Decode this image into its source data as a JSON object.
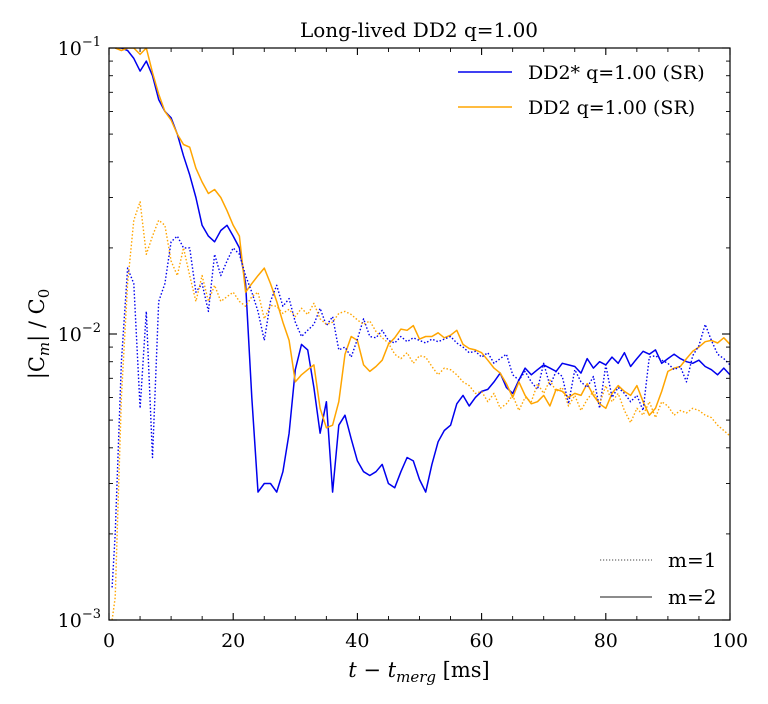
{
  "chart_data": {
    "type": "line",
    "title": "Long-lived DD2 q=1.00",
    "xlabel": "t − t",
    "xlabel_sub": "merg",
    "xlabel_unit": " [ms]",
    "ylabel_pre": "|C",
    "ylabel_sub1": "m",
    "ylabel_mid": "| / C",
    "ylabel_sub2": "0",
    "xlim": [
      0,
      100
    ],
    "ylim": [
      0.001,
      0.1
    ],
    "yscale": "log",
    "x_ticks": [
      0,
      20,
      40,
      60,
      80,
      100
    ],
    "x_tick_labels": [
      "0",
      "20",
      "40",
      "60",
      "80",
      "100"
    ],
    "y_ticks": [
      0.001,
      0.01,
      0.1
    ],
    "y_tick_labels": [
      {
        "base": "10",
        "exp": "−3"
      },
      {
        "base": "10",
        "exp": "−2"
      },
      {
        "base": "10",
        "exp": "−1"
      }
    ],
    "legend_placement": "top-right",
    "legend": [
      {
        "label": "DD2* q=1.00 (SR)",
        "color": "#0000ee"
      },
      {
        "label": "DD2 q=1.00 (SR)",
        "color": "#ffa500"
      }
    ],
    "style_legend": [
      {
        "label": "m=1",
        "style": "dotted"
      },
      {
        "label": "m=2",
        "style": "solid"
      }
    ],
    "series": [
      {
        "legend_label": "DD2* q=1.00 (SR)",
        "mode": "m=2",
        "style": "solid",
        "color": "#0000ee",
        "x": [
          1,
          2,
          3,
          4,
          5,
          6,
          7,
          8,
          9,
          10,
          11,
          12,
          13,
          14,
          15,
          16,
          17,
          18,
          19,
          20,
          21,
          22,
          23,
          24,
          25,
          26,
          27,
          28,
          29,
          30,
          31,
          32,
          33,
          34,
          35,
          36,
          37,
          38,
          39,
          40,
          41,
          42,
          43,
          44,
          45,
          46,
          47,
          48,
          49,
          50,
          51,
          52,
          53,
          54,
          55,
          56,
          57,
          58,
          59,
          60,
          61,
          62,
          63,
          64,
          65,
          66,
          67,
          68,
          69,
          70,
          71,
          72,
          73,
          74,
          75,
          76,
          77,
          78,
          79,
          80,
          81,
          82,
          83,
          84,
          85,
          86,
          87,
          88,
          89,
          90,
          91,
          92,
          93,
          94,
          95,
          96,
          97,
          98,
          99,
          100
        ],
        "y": [
          0.1,
          0.1,
          0.098,
          0.092,
          0.083,
          0.09,
          0.08,
          0.066,
          0.06,
          0.057,
          0.05,
          0.042,
          0.036,
          0.03,
          0.024,
          0.022,
          0.021,
          0.023,
          0.024,
          0.022,
          0.02,
          0.015,
          0.006,
          0.0028,
          0.003,
          0.003,
          0.0028,
          0.0033,
          0.0045,
          0.0075,
          0.0092,
          0.0088,
          0.0065,
          0.0045,
          0.0058,
          0.0028,
          0.0048,
          0.0052,
          0.0043,
          0.0036,
          0.0033,
          0.0032,
          0.0033,
          0.0035,
          0.003,
          0.0029,
          0.0033,
          0.0037,
          0.0036,
          0.0031,
          0.0028,
          0.0035,
          0.0042,
          0.0046,
          0.0048,
          0.0057,
          0.0061,
          0.0056,
          0.006,
          0.0063,
          0.0064,
          0.0068,
          0.0073,
          0.0065,
          0.0062,
          0.0069,
          0.0076,
          0.0072,
          0.0075,
          0.0078,
          0.0076,
          0.0074,
          0.0079,
          0.0078,
          0.0077,
          0.0073,
          0.0082,
          0.0076,
          0.008,
          0.0078,
          0.0083,
          0.0079,
          0.0086,
          0.0077,
          0.0082,
          0.0087,
          0.0085,
          0.0088,
          0.0079,
          0.0082,
          0.0085,
          0.0082,
          0.008,
          0.0079,
          0.0081,
          0.0077,
          0.0075,
          0.0072,
          0.0076,
          0.0072
        ]
      },
      {
        "legend_label": "DD2 q=1.00 (SR)",
        "mode": "m=2",
        "style": "solid",
        "color": "#ffa500",
        "x": [
          1,
          2,
          3,
          4,
          5,
          6,
          7,
          8,
          9,
          10,
          11,
          12,
          13,
          14,
          15,
          16,
          17,
          18,
          19,
          20,
          21,
          22,
          23,
          24,
          25,
          26,
          27,
          28,
          29,
          30,
          31,
          32,
          33,
          34,
          35,
          36,
          37,
          38,
          39,
          40,
          41,
          42,
          43,
          44,
          45,
          46,
          47,
          48,
          49,
          50,
          51,
          52,
          53,
          54,
          55,
          56,
          57,
          58,
          59,
          60,
          61,
          62,
          63,
          64,
          65,
          66,
          67,
          68,
          69,
          70,
          71,
          72,
          73,
          74,
          75,
          76,
          77,
          78,
          79,
          80,
          81,
          82,
          83,
          84,
          85,
          86,
          87,
          88,
          89,
          90,
          91,
          92,
          93,
          94,
          95,
          96,
          97,
          98,
          99,
          100
        ],
        "y": [
          0.1,
          0.098,
          0.1,
          0.1,
          0.095,
          0.1,
          0.082,
          0.069,
          0.06,
          0.056,
          0.05,
          0.046,
          0.045,
          0.038,
          0.034,
          0.031,
          0.032,
          0.03,
          0.027,
          0.024,
          0.022,
          0.014,
          0.015,
          0.016,
          0.017,
          0.015,
          0.013,
          0.011,
          0.0095,
          0.0068,
          0.0072,
          0.0075,
          0.0078,
          0.0055,
          0.0047,
          0.0048,
          0.0058,
          0.0085,
          0.0098,
          0.0095,
          0.0078,
          0.0074,
          0.0077,
          0.0081,
          0.0092,
          0.0097,
          0.0104,
          0.0103,
          0.0107,
          0.0096,
          0.0098,
          0.0098,
          0.0101,
          0.0097,
          0.0099,
          0.0103,
          0.0092,
          0.0089,
          0.0088,
          0.0086,
          0.0081,
          0.0076,
          0.0073,
          0.0067,
          0.006,
          0.0068,
          0.0061,
          0.0057,
          0.0058,
          0.0061,
          0.0056,
          0.0064,
          0.0063,
          0.006,
          0.0062,
          0.0061,
          0.0067,
          0.0061,
          0.0057,
          0.0055,
          0.0062,
          0.0066,
          0.0063,
          0.0061,
          0.0066,
          0.0058,
          0.0052,
          0.0055,
          0.0063,
          0.0074,
          0.0076,
          0.0077,
          0.0082,
          0.0087,
          0.009,
          0.0094,
          0.0095,
          0.0093,
          0.0097,
          0.0092
        ]
      },
      {
        "legend_label": "DD2* q=1.00 (SR)",
        "mode": "m=1",
        "style": "dotted",
        "color": "#0000ee",
        "x": [
          0.5,
          1,
          2,
          3,
          4,
          5,
          6,
          7,
          8,
          9,
          10,
          11,
          12,
          13,
          14,
          15,
          16,
          17,
          18,
          19,
          20,
          21,
          22,
          23,
          24,
          25,
          26,
          27,
          28,
          29,
          30,
          31,
          32,
          33,
          34,
          35,
          36,
          37,
          38,
          39,
          40,
          41,
          42,
          43,
          44,
          45,
          46,
          47,
          48,
          49,
          50,
          51,
          52,
          53,
          54,
          55,
          56,
          57,
          58,
          59,
          60,
          61,
          62,
          63,
          64,
          65,
          66,
          67,
          68,
          69,
          70,
          71,
          72,
          73,
          74,
          75,
          76,
          77,
          78,
          79,
          80,
          81,
          82,
          83,
          84,
          85,
          86,
          87,
          88,
          89,
          90,
          91,
          92,
          93,
          94,
          95,
          96,
          97,
          98,
          99,
          100
        ],
        "y": [
          0.0013,
          0.002,
          0.008,
          0.017,
          0.015,
          0.0055,
          0.012,
          0.0037,
          0.013,
          0.015,
          0.021,
          0.022,
          0.02,
          0.02,
          0.014,
          0.015,
          0.012,
          0.019,
          0.016,
          0.018,
          0.02,
          0.019,
          0.016,
          0.014,
          0.012,
          0.0095,
          0.013,
          0.0148,
          0.0125,
          0.0133,
          0.011,
          0.0098,
          0.0103,
          0.0108,
          0.0123,
          0.0107,
          0.0115,
          0.0088,
          0.009,
          0.0083,
          0.0096,
          0.0113,
          0.0098,
          0.0097,
          0.0103,
          0.0095,
          0.0093,
          0.0098,
          0.0094,
          0.0097,
          0.0095,
          0.0093,
          0.0096,
          0.0094,
          0.0096,
          0.0098,
          0.0093,
          0.009,
          0.0086,
          0.0087,
          0.0083,
          0.0086,
          0.0079,
          0.0082,
          0.0085,
          0.0072,
          0.0069,
          0.0074,
          0.0068,
          0.0064,
          0.0079,
          0.0066,
          0.0074,
          0.0071,
          0.0057,
          0.0075,
          0.0068,
          0.0065,
          0.0071,
          0.0055,
          0.0078,
          0.006,
          0.0065,
          0.0062,
          0.0058,
          0.0061,
          0.0054,
          0.0083,
          0.0084,
          0.0081,
          0.0079,
          0.0075,
          0.0077,
          0.0068,
          0.0084,
          0.0091,
          0.0108,
          0.0095,
          0.0085,
          0.0082,
          0.0078
        ]
      },
      {
        "legend_label": "DD2 q=1.00 (SR)",
        "mode": "m=1",
        "style": "dotted",
        "color": "#ffa500",
        "x": [
          0.5,
          1,
          2,
          3,
          4,
          5,
          6,
          7,
          8,
          9,
          10,
          11,
          12,
          13,
          14,
          15,
          16,
          17,
          18,
          19,
          20,
          21,
          22,
          23,
          24,
          25,
          26,
          27,
          28,
          29,
          30,
          31,
          32,
          33,
          34,
          35,
          36,
          37,
          38,
          39,
          40,
          41,
          42,
          43,
          44,
          45,
          46,
          47,
          48,
          49,
          50,
          51,
          52,
          53,
          54,
          55,
          56,
          57,
          58,
          59,
          60,
          61,
          62,
          63,
          64,
          65,
          66,
          67,
          68,
          69,
          70,
          71,
          72,
          73,
          74,
          75,
          76,
          77,
          78,
          79,
          80,
          81,
          82,
          83,
          84,
          85,
          86,
          87,
          88,
          89,
          90,
          91,
          92,
          93,
          94,
          95,
          96,
          97,
          98,
          99,
          100
        ],
        "y": [
          0.001,
          0.0012,
          0.006,
          0.015,
          0.025,
          0.029,
          0.019,
          0.022,
          0.025,
          0.024,
          0.018,
          0.016,
          0.02,
          0.016,
          0.013,
          0.016,
          0.013,
          0.0148,
          0.013,
          0.0135,
          0.014,
          0.013,
          0.0125,
          0.0135,
          0.014,
          0.0113,
          0.0126,
          0.0125,
          0.0118,
          0.0122,
          0.0115,
          0.0123,
          0.0117,
          0.0128,
          0.0113,
          0.0108,
          0.011,
          0.0118,
          0.012,
          0.0117,
          0.0112,
          0.0108,
          0.0111,
          0.0102,
          0.0097,
          0.0093,
          0.0085,
          0.0082,
          0.0086,
          0.0079,
          0.0084,
          0.0083,
          0.0077,
          0.0072,
          0.0076,
          0.0075,
          0.0072,
          0.0068,
          0.0066,
          0.0062,
          0.0063,
          0.0058,
          0.0062,
          0.0055,
          0.0057,
          0.0061,
          0.0054,
          0.006,
          0.0058,
          0.0067,
          0.0062,
          0.0069,
          0.0063,
          0.0065,
          0.0056,
          0.0061,
          0.0054,
          0.0059,
          0.0063,
          0.0057,
          0.0066,
          0.0058,
          0.0062,
          0.0054,
          0.0049,
          0.0055,
          0.0052,
          0.0058,
          0.0051,
          0.0058,
          0.0056,
          0.0052,
          0.0054,
          0.0053,
          0.0055,
          0.0054,
          0.0052,
          0.0051,
          0.0048,
          0.0046,
          0.0044
        ]
      }
    ]
  }
}
